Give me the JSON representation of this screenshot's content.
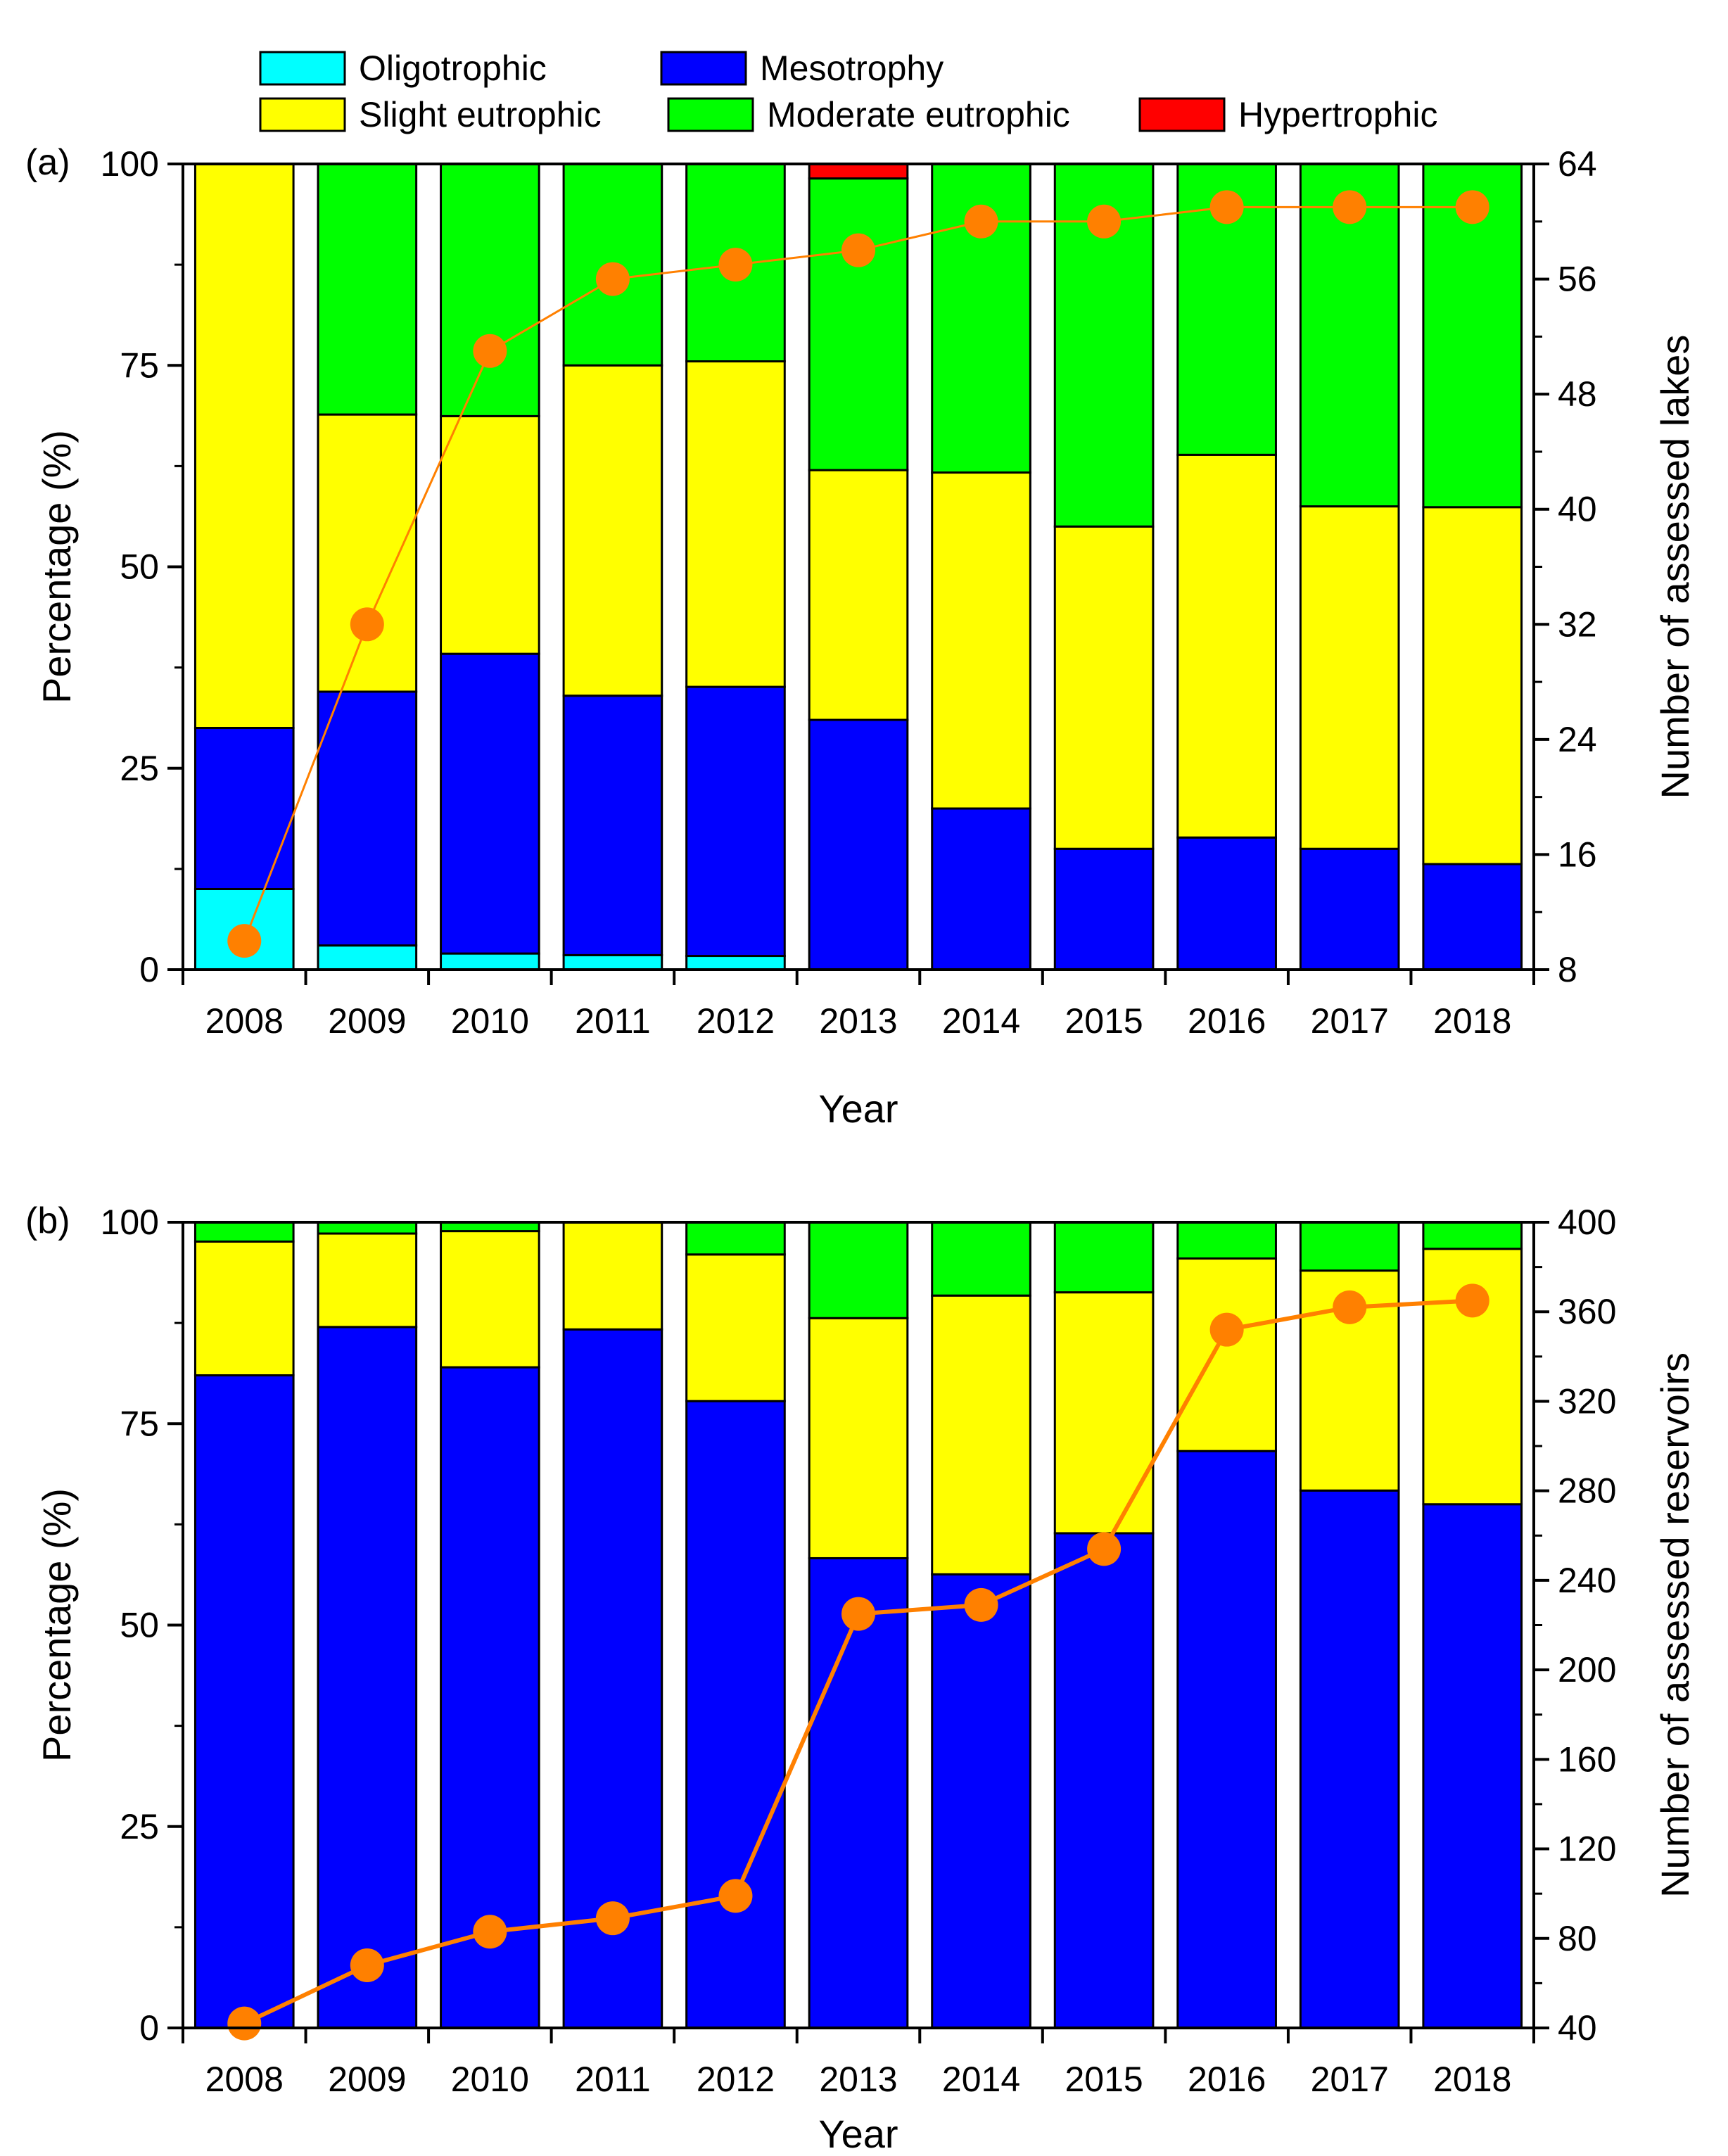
{
  "legend": {
    "items": [
      {
        "name": "Oligotrophic",
        "color": "#00FFFF"
      },
      {
        "name": "Mesotrophy",
        "color": "#0000FF"
      },
      {
        "name": "Slight eutrophic",
        "color": "#FFFF00"
      },
      {
        "name": "Moderate eutrophic",
        "color": "#00FF00"
      },
      {
        "name": "Hypertrophic",
        "color": "#FF0000"
      }
    ]
  },
  "line_color": "#FF8000",
  "chart_data": [
    {
      "type": "bar",
      "stacked": true,
      "panel_label": "(a)",
      "title": "",
      "xlabel": "Year",
      "ylabel": "Percentage (%)",
      "y2label": "Number of assessed lakes",
      "ylim": [
        0,
        100
      ],
      "y2lim": [
        8,
        64
      ],
      "yticks": [
        0,
        25,
        50,
        75,
        100
      ],
      "y2ticks": [
        8,
        16,
        24,
        32,
        40,
        48,
        56,
        64
      ],
      "categories": [
        "2008",
        "2009",
        "2010",
        "2011",
        "2012",
        "2013",
        "2014",
        "2015",
        "2016",
        "2017",
        "2018"
      ],
      "series": [
        {
          "name": "Oligotrophic",
          "values": [
            10,
            3,
            2,
            1.8,
            1.7,
            0,
            0,
            0,
            0,
            0,
            0
          ]
        },
        {
          "name": "Mesotrophy",
          "values": [
            20,
            31.5,
            37.2,
            32.2,
            33.4,
            31,
            20,
            15,
            16.4,
            15,
            13.1
          ]
        },
        {
          "name": "Slight eutrophic",
          "values": [
            70,
            34.4,
            29.5,
            41,
            40.4,
            31,
            41.7,
            40,
            47.5,
            42.5,
            44.3
          ]
        },
        {
          "name": "Moderate eutrophic",
          "values": [
            0,
            31.1,
            31.3,
            25,
            24.5,
            36.2,
            38.3,
            45,
            36.1,
            42.5,
            42.6
          ]
        },
        {
          "name": "Hypertrophic",
          "values": [
            0,
            0,
            0,
            0,
            0,
            1.8,
            0,
            0,
            0,
            0,
            0
          ]
        }
      ],
      "line": {
        "name": "Number of assessed lakes",
        "axis": "right",
        "values": [
          10,
          32,
          51,
          56,
          57,
          58,
          60,
          60,
          61,
          61,
          61
        ]
      }
    },
    {
      "type": "bar",
      "stacked": true,
      "panel_label": "(b)",
      "title": "",
      "xlabel": "Year",
      "ylabel": "Percentage (%)",
      "y2label": "Number of assessed reservoirs",
      "ylim": [
        0,
        100
      ],
      "y2lim": [
        40,
        400
      ],
      "yticks": [
        0,
        25,
        50,
        75,
        100
      ],
      "y2ticks": [
        40,
        80,
        120,
        160,
        200,
        240,
        280,
        320,
        360,
        400
      ],
      "categories": [
        "2008",
        "2009",
        "2010",
        "2011",
        "2012",
        "2013",
        "2014",
        "2015",
        "2016",
        "2017",
        "2018"
      ],
      "series": [
        {
          "name": "Oligotrophic",
          "values": [
            0,
            0,
            0,
            0,
            0,
            0,
            0,
            0,
            0,
            0,
            0
          ]
        },
        {
          "name": "Mesotrophy",
          "values": [
            81,
            87,
            82,
            86.7,
            77.8,
            58.3,
            56.3,
            61.4,
            71.6,
            66.7,
            65
          ]
        },
        {
          "name": "Slight eutrophic",
          "values": [
            16.6,
            11.6,
            16.9,
            13.3,
            18.2,
            29.8,
            34.6,
            29.9,
            23.9,
            27.3,
            31.7
          ]
        },
        {
          "name": "Moderate eutrophic",
          "values": [
            2.4,
            1.4,
            1.1,
            0,
            4,
            11.9,
            9.1,
            8.7,
            4.5,
            6,
            3.3
          ]
        },
        {
          "name": "Hypertrophic",
          "values": [
            0,
            0,
            0,
            0,
            0,
            0,
            0,
            0,
            0,
            0,
            0
          ]
        }
      ],
      "line": {
        "name": "Number of assessed reservoirs",
        "axis": "right",
        "values": [
          42,
          68,
          83,
          89,
          99,
          225,
          229,
          254,
          352,
          362,
          365
        ]
      }
    }
  ]
}
